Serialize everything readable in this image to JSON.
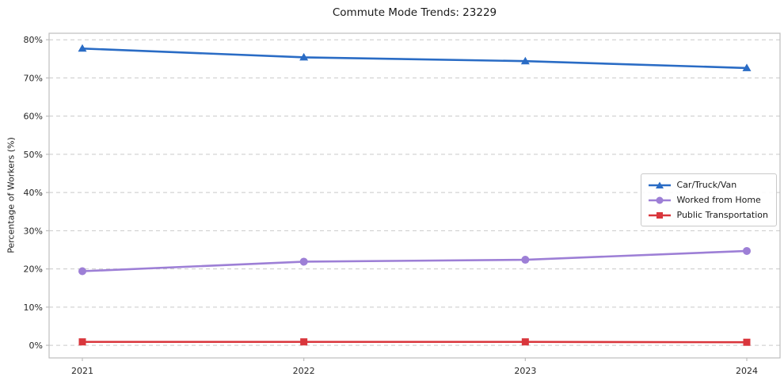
{
  "chart_data": {
    "type": "line",
    "title": "Commute Mode Trends: 23229",
    "xlabel": "",
    "ylabel": "Percentage of Workers (%)",
    "x": [
      2021,
      2022,
      2023,
      2024
    ],
    "x_tick_labels": [
      "2021",
      "2022",
      "2023",
      "2024"
    ],
    "y_ticks": [
      0,
      10,
      20,
      30,
      40,
      50,
      60,
      70,
      80
    ],
    "y_tick_labels": [
      "0%",
      "10%",
      "20%",
      "30%",
      "40%",
      "50%",
      "60%",
      "70%",
      "80%"
    ],
    "ylim": [
      0,
      80
    ],
    "grid": true,
    "grid_style": "dashed",
    "legend_position": "center right",
    "series": [
      {
        "name": "Car/Truck/Van",
        "marker": "triangle",
        "color": "#2a6cc5",
        "values": [
          77.7,
          75.4,
          74.4,
          72.6
        ]
      },
      {
        "name": "Worked from Home",
        "marker": "circle",
        "color": "#9d7fd6",
        "values": [
          19.4,
          21.9,
          22.4,
          24.7
        ]
      },
      {
        "name": "Public Transportation",
        "marker": "square",
        "color": "#d9363c",
        "values": [
          0.9,
          0.9,
          0.9,
          0.8
        ]
      }
    ],
    "colors": {
      "grid": "#c9c9c9",
      "spine": "#bdbdbd",
      "background": "#ffffff"
    }
  }
}
